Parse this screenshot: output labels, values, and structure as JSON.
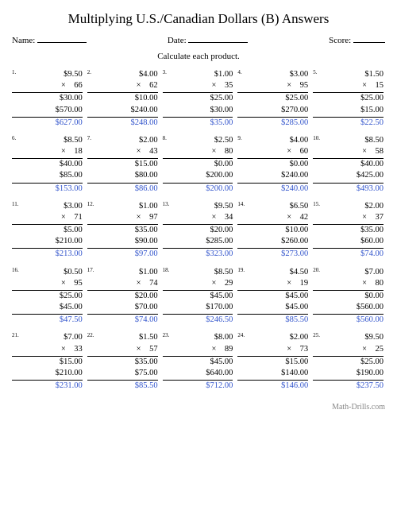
{
  "title": "Multiplying U.S./Canadian Dollars (B) Answers",
  "labels": {
    "name": "Name:",
    "date": "Date:",
    "score": "Score:"
  },
  "instruction": "Calculate each product.",
  "footer": "Math-Drills.com",
  "blanks": {
    "name_w": 62,
    "date_w": 75,
    "score_w": 40
  },
  "answer_color": "#3355cc",
  "problems": [
    {
      "n": "1",
      "a": "$9.50",
      "b": "66",
      "p1": "$30.00",
      "p2": "$570.00",
      "ans": "$627.00"
    },
    {
      "n": "2",
      "a": "$4.00",
      "b": "62",
      "p1": "$10.00",
      "p2": "$240.00",
      "ans": "$248.00"
    },
    {
      "n": "3",
      "a": "$1.00",
      "b": "35",
      "p1": "$25.00",
      "p2": "$30.00",
      "ans": "$35.00"
    },
    {
      "n": "4",
      "a": "$3.00",
      "b": "95",
      "p1": "$25.00",
      "p2": "$270.00",
      "ans": "$285.00"
    },
    {
      "n": "5",
      "a": "$1.50",
      "b": "15",
      "p1": "$25.00",
      "p2": "$15.00",
      "ans": "$22.50"
    },
    {
      "n": "6",
      "a": "$8.50",
      "b": "18",
      "p1": "$40.00",
      "p2": "$85.00",
      "ans": "$153.00"
    },
    {
      "n": "7",
      "a": "$2.00",
      "b": "43",
      "p1": "$15.00",
      "p2": "$80.00",
      "ans": "$86.00"
    },
    {
      "n": "8",
      "a": "$2.50",
      "b": "80",
      "p1": "$0.00",
      "p2": "$200.00",
      "ans": "$200.00"
    },
    {
      "n": "9",
      "a": "$4.00",
      "b": "60",
      "p1": "$0.00",
      "p2": "$240.00",
      "ans": "$240.00"
    },
    {
      "n": "10",
      "a": "$8.50",
      "b": "58",
      "p1": "$40.00",
      "p2": "$425.00",
      "ans": "$493.00"
    },
    {
      "n": "11",
      "a": "$3.00",
      "b": "71",
      "p1": "$5.00",
      "p2": "$210.00",
      "ans": "$213.00"
    },
    {
      "n": "12",
      "a": "$1.00",
      "b": "97",
      "p1": "$35.00",
      "p2": "$90.00",
      "ans": "$97.00"
    },
    {
      "n": "13",
      "a": "$9.50",
      "b": "34",
      "p1": "$20.00",
      "p2": "$285.00",
      "ans": "$323.00"
    },
    {
      "n": "14",
      "a": "$6.50",
      "b": "42",
      "p1": "$10.00",
      "p2": "$260.00",
      "ans": "$273.00"
    },
    {
      "n": "15",
      "a": "$2.00",
      "b": "37",
      "p1": "$35.00",
      "p2": "$60.00",
      "ans": "$74.00"
    },
    {
      "n": "16",
      "a": "$0.50",
      "b": "95",
      "p1": "$25.00",
      "p2": "$45.00",
      "ans": "$47.50"
    },
    {
      "n": "17",
      "a": "$1.00",
      "b": "74",
      "p1": "$20.00",
      "p2": "$70.00",
      "ans": "$74.00"
    },
    {
      "n": "18",
      "a": "$8.50",
      "b": "29",
      "p1": "$45.00",
      "p2": "$170.00",
      "ans": "$246.50"
    },
    {
      "n": "19",
      "a": "$4.50",
      "b": "19",
      "p1": "$45.00",
      "p2": "$45.00",
      "ans": "$85.50"
    },
    {
      "n": "20",
      "a": "$7.00",
      "b": "80",
      "p1": "$0.00",
      "p2": "$560.00",
      "ans": "$560.00"
    },
    {
      "n": "21",
      "a": "$7.00",
      "b": "33",
      "p1": "$15.00",
      "p2": "$210.00",
      "ans": "$231.00"
    },
    {
      "n": "22",
      "a": "$1.50",
      "b": "57",
      "p1": "$35.00",
      "p2": "$75.00",
      "ans": "$85.50"
    },
    {
      "n": "23",
      "a": "$8.00",
      "b": "89",
      "p1": "$45.00",
      "p2": "$640.00",
      "ans": "$712.00"
    },
    {
      "n": "24",
      "a": "$2.00",
      "b": "73",
      "p1": "$15.00",
      "p2": "$140.00",
      "ans": "$146.00"
    },
    {
      "n": "25",
      "a": "$9.50",
      "b": "25",
      "p1": "$25.00",
      "p2": "$190.00",
      "ans": "$237.50"
    }
  ]
}
